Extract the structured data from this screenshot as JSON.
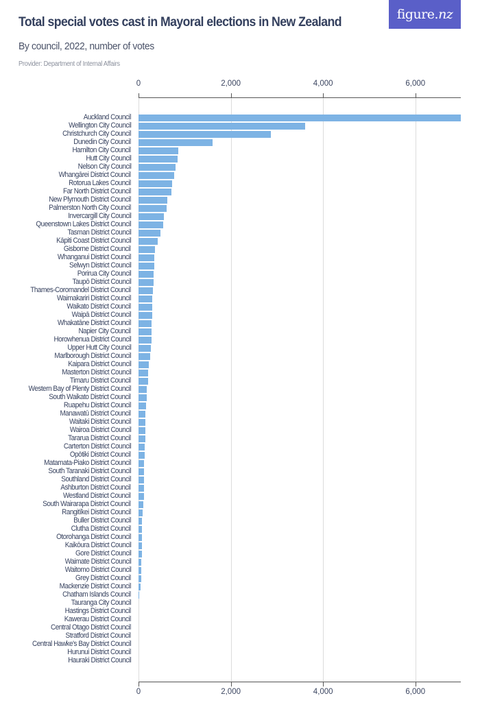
{
  "header": {
    "title": "Total special votes cast in Mayoral elections in New Zealand",
    "subtitle": "By council, 2022, number of votes",
    "provider": "Provider: Department of Internal Affairs",
    "logo_text": "figure.",
    "logo_text_italic": "nz"
  },
  "colors": {
    "bar": "#7db3e4",
    "logo_bg": "#5a5fc8",
    "title": "#34405e"
  },
  "axis": {
    "ticks": [
      {
        "value": 0,
        "label": "0"
      },
      {
        "value": 2000,
        "label": "2,000"
      },
      {
        "value": 4000,
        "label": "4,000"
      },
      {
        "value": 6000,
        "label": "6,000"
      }
    ],
    "max": 7000
  },
  "chart_data": {
    "type": "bar",
    "orientation": "horizontal",
    "title": "Total special votes cast in Mayoral elections in New Zealand",
    "subtitle": "By council, 2022, number of votes",
    "xlabel": "",
    "ylabel": "",
    "xlim": [
      0,
      7000
    ],
    "x_ticks": [
      "0",
      "2,000",
      "4,000",
      "6,000"
    ],
    "grid": true,
    "legend": null,
    "categories": [
      "Auckland Council",
      "Wellington City Council",
      "Christchurch City Council",
      "Dunedin City Council",
      "Hamilton City Council",
      "Hutt City Council",
      "Nelson City Council",
      "Whangārei District Council",
      "Rotorua Lakes Council",
      "Far North District Council",
      "New Plymouth District Council",
      "Palmerston North City Council",
      "Invercargill City Council",
      "Queenstown Lakes District Council",
      "Tasman District Council",
      "Kāpiti Coast District Council",
      "Gisborne District Council",
      "Whanganui District Council",
      "Selwyn District Council",
      "Porirua City Council",
      "Taupō District Council",
      "Thames-Coromandel District Council",
      "Waimakariri District Council",
      "Waikato District Council",
      "Waipā District Council",
      "Whakatāne District Council",
      "Napier City Council",
      "Horowhenua District Council",
      "Upper Hutt City Council",
      "Marlborough District Council",
      "Kaipara District Council",
      "Masterton District Council",
      "Timaru District Council",
      "Western Bay of Plenty District Council",
      "South Waikato District Council",
      "Ruapehu District Council",
      "Manawatū District Council",
      "Waitaki District Council",
      "Wairoa District Council",
      "Tararua District Council",
      "Carterton District Council",
      "Ōpōtiki District Council",
      "Matamata-Piako District Council",
      "South Taranaki District Council",
      "Southland District Council",
      "Ashburton District Council",
      "Westland District Council",
      "South Wairarapa District Council",
      "Rangitīkei District Council",
      "Buller District Council",
      "Clutha District Council",
      "Ōtorohanga District Council",
      "Kaikōura District Council",
      "Gore District Council",
      "Waimate District Council",
      "Waitomo District Council",
      "Grey District Council",
      "Mackenzie District Council",
      "Chatham Islands Council",
      "Tauranga City Council",
      "Hastings District Council",
      "Kawerau District Council",
      "Central Otago District Council",
      "Stratford District Council",
      "Central Hawke's Bay District Council",
      "Hurunui District Council",
      "Hauraki District Council"
    ],
    "values": [
      6980,
      3610,
      2875,
      1600,
      865,
      850,
      806,
      767,
      722,
      708,
      619,
      604,
      549,
      539,
      470,
      420,
      356,
      346,
      339,
      334,
      329,
      319,
      304,
      300,
      292,
      287,
      282,
      280,
      265,
      255,
      230,
      215,
      205,
      185,
      178,
      165,
      148,
      148,
      145,
      143,
      134,
      130,
      125,
      124,
      122,
      118,
      113,
      104,
      84,
      80,
      75,
      72,
      70,
      67,
      66,
      60,
      58,
      45,
      5,
      0,
      0,
      0,
      0,
      0,
      0,
      0,
      0
    ]
  }
}
